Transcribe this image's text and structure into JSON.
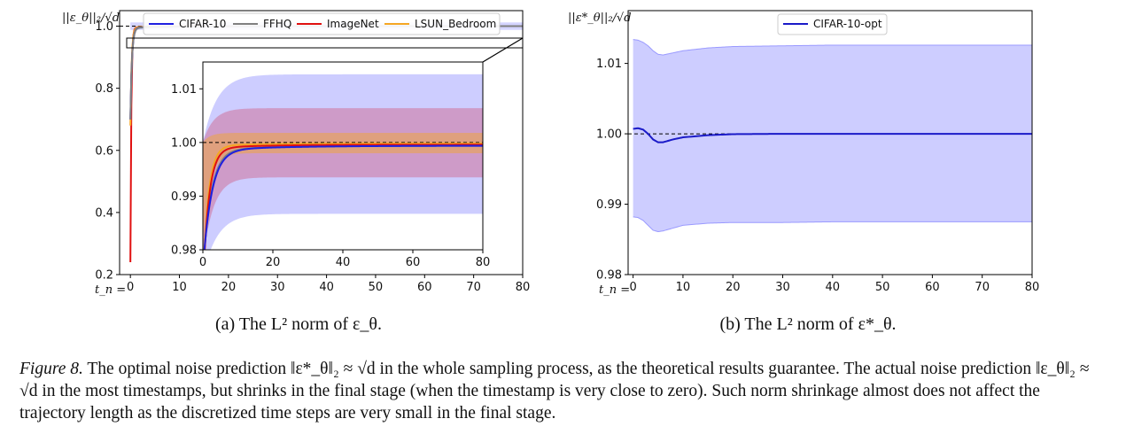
{
  "chart_data": [
    {
      "type": "line",
      "panel": "a",
      "ylabel": "||ε_θ||₂/√d",
      "xlabel": "",
      "xlim": [
        0,
        80
      ],
      "ylim": [
        0.2,
        1.05
      ],
      "xticks": [
        "0",
        "10",
        "20",
        "30",
        "40",
        "50",
        "60",
        "70",
        "80"
      ],
      "yticks": [
        "0.2",
        "0.4",
        "0.6",
        "0.8",
        "1.0"
      ],
      "x_prefix": "t_n = ",
      "reference_line": 1.0,
      "legend_position": "top",
      "series": [
        {
          "name": "CIFAR-10",
          "color": "#1f1fe0"
        },
        {
          "name": "FFHQ",
          "color": "#808080"
        },
        {
          "name": "ImageNet",
          "color": "#e01010"
        },
        {
          "name": "LSUN_Bedroom",
          "color": "#f5a623"
        }
      ],
      "inset": {
        "xlim": [
          0,
          80
        ],
        "ylim": [
          0.98,
          1.015
        ],
        "xticks": [
          "0",
          "20",
          "40",
          "60",
          "80"
        ],
        "yticks": [
          "0.98",
          "0.99",
          "1.00",
          "1.01"
        ],
        "bands": [
          {
            "series": "CIFAR-10",
            "lower_end": 0.9867,
            "upper_end": 1.0127,
            "color": "#7070ff"
          },
          {
            "series": "ImageNet",
            "lower_end": 0.9935,
            "upper_end": 1.0064,
            "color": "#d04060"
          },
          {
            "series": "LSUN_Bedroom",
            "lower_end": 0.998,
            "upper_end": 1.0018,
            "color": "#f5a623"
          }
        ]
      }
    },
    {
      "type": "line",
      "panel": "b",
      "ylabel": "||ε*_θ||₂/√d",
      "xlabel": "",
      "xlim": [
        0,
        80
      ],
      "ylim": [
        0.98,
        1.0175
      ],
      "xticks": [
        "0",
        "10",
        "20",
        "30",
        "40",
        "50",
        "60",
        "70",
        "80"
      ],
      "yticks": [
        "0.98",
        "0.99",
        "1.00",
        "1.01"
      ],
      "x_prefix": "t_n = ",
      "reference_line": 1.0,
      "legend_position": "top-center",
      "series": [
        {
          "name": "CIFAR-10-opt",
          "color": "#1a1ac8",
          "x": [
            0,
            1,
            2,
            3,
            4,
            5,
            6,
            8,
            10,
            15,
            20,
            30,
            40,
            80
          ],
          "y": [
            1.0007,
            1.0008,
            1.0006,
            1.0,
            0.9992,
            0.9988,
            0.9988,
            0.9992,
            0.9995,
            0.9998,
            0.99995,
            1.0,
            1.0,
            1.0
          ],
          "band_upper": [
            1.0134,
            1.0133,
            1.013,
            1.0125,
            1.0118,
            1.0113,
            1.0112,
            1.0115,
            1.0118,
            1.0122,
            1.0124,
            1.0125,
            1.0126,
            1.0126
          ],
          "band_lower": [
            0.9882,
            0.9881,
            0.9877,
            0.987,
            0.9863,
            0.9861,
            0.9862,
            0.9866,
            0.987,
            0.9873,
            0.9874,
            0.9874,
            0.9875,
            0.9875
          ]
        }
      ]
    }
  ],
  "subcaptions": {
    "a": "(a) The L² norm of ε_θ.",
    "b": "(b) The L² norm of ε*_θ."
  },
  "caption": {
    "label": "Figure 8.",
    "text": "The optimal noise prediction ‖ε*_θ‖₂ ≈ √d in the whole sampling process, as the theoretical results guarantee. The actual noise prediction ‖ε_θ‖₂ ≈ √d in the most timestamps, but shrinks in the final stage (when the timestamp is very close to zero). Such norm shrinkage almost does not affect the trajectory length as the discretized time steps are very small in the final stage."
  }
}
